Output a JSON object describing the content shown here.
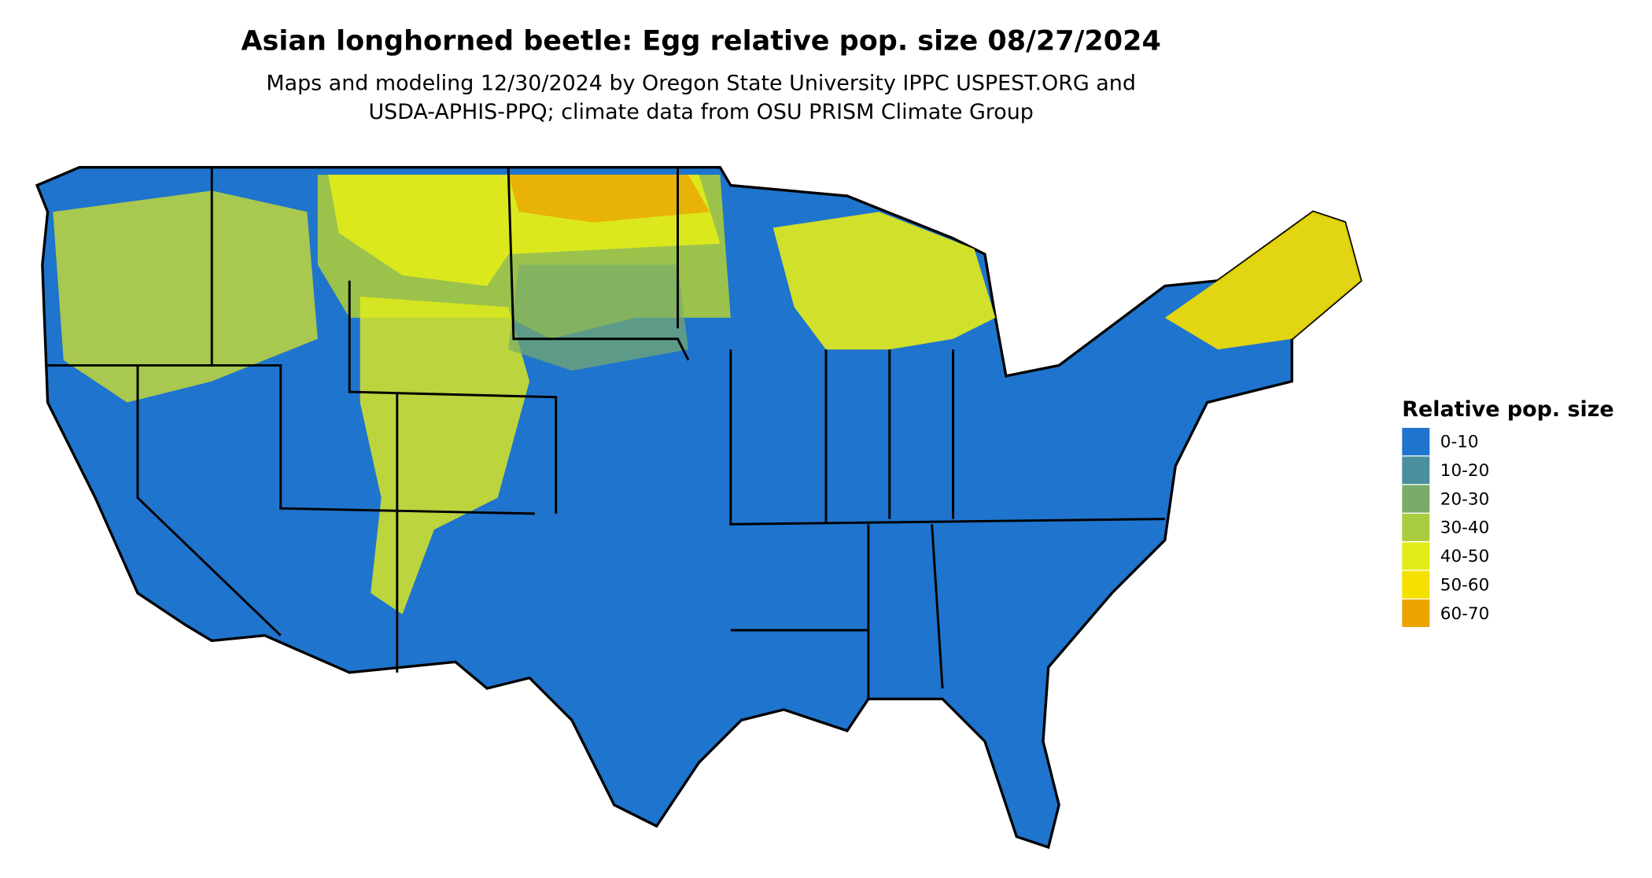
{
  "title": "Asian longhorned beetle: Egg relative pop. size 08/27/2024",
  "subtitle": [
    "Maps and modeling 12/30/2024 by Oregon State University IPPC USPEST.ORG and",
    "USDA-APHIS-PPQ; climate data from OSU PRISM Climate Group"
  ],
  "legend": {
    "title": "Relative pop. size",
    "items": [
      {
        "label": "0-10",
        "color": "#1f74cd"
      },
      {
        "label": "10-20",
        "color": "#4a8f9e"
      },
      {
        "label": "20-30",
        "color": "#79ab6b"
      },
      {
        "label": "30-40",
        "color": "#a9cc3e"
      },
      {
        "label": "40-50",
        "color": "#e3ec19"
      },
      {
        "label": "50-60",
        "color": "#f6e000"
      },
      {
        "label": "60-70",
        "color": "#eba400"
      }
    ]
  }
}
